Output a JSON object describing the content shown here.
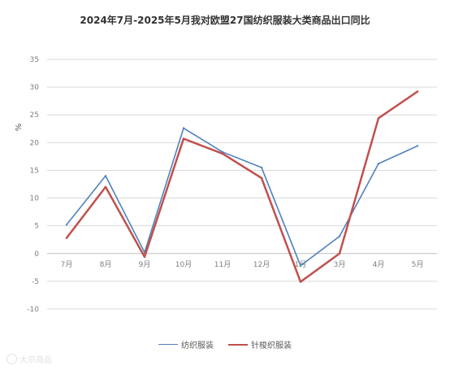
{
  "chart_data": {
    "type": "line",
    "title": "2024年7月-2025年5月我对欧盟27国纺织服装大类商品出口同比",
    "ylabel": "%",
    "xlabel": "",
    "ylim": [
      -10,
      35
    ],
    "yticks": [
      35,
      30,
      25,
      20,
      15,
      10,
      5,
      0,
      -5,
      -10
    ],
    "categories": [
      "7月",
      "8月",
      "9月",
      "10月",
      "11月",
      "12月",
      "1月",
      "3月",
      "4月",
      "5月"
    ],
    "grid": true,
    "legend_position": "bottom",
    "series": [
      {
        "name": "纺织服装",
        "color": "#4f81bd",
        "values": [
          5.2,
          14.0,
          0.2,
          22.6,
          18.3,
          15.5,
          -2.2,
          3.1,
          16.2,
          19.4
        ]
      },
      {
        "name": "针梭织服装",
        "color": "#c0504d",
        "values": [
          2.8,
          12.0,
          -0.6,
          20.7,
          18.0,
          13.6,
          -5.1,
          0.0,
          24.4,
          29.2
        ]
      }
    ]
  },
  "watermark": {
    "text": "大宗商品"
  }
}
